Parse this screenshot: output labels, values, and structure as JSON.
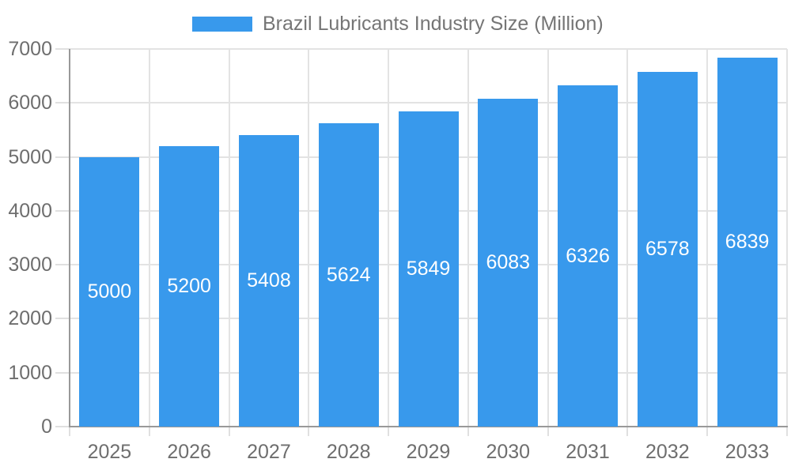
{
  "chart_data": {
    "type": "bar",
    "categories": [
      "2025",
      "2026",
      "2027",
      "2028",
      "2029",
      "2030",
      "2031",
      "2032",
      "2033"
    ],
    "series": [
      {
        "name": "Brazil Lubricants Industry Size (Million)",
        "values": [
          5000,
          5200,
          5408,
          5624,
          5849,
          6083,
          6326,
          6578,
          6839
        ],
        "color": "#3899EC"
      }
    ],
    "legend_label": "Brazil Lubricants Industry Size (Million)",
    "legend_position": "top-center",
    "ylim": [
      0,
      7000
    ],
    "yticks": [
      0,
      1000,
      2000,
      3000,
      4000,
      5000,
      6000,
      7000
    ],
    "grid": true,
    "value_labels": "inside-center",
    "colors": {
      "bar": "#3899EC",
      "gridline": "#E3E3E3",
      "tick": "#E0E0E0",
      "axis_line": "#999999",
      "axis_text": "#6E6E6E",
      "legend_text": "#757575",
      "value_text": "#FFFFFF",
      "background": "#FFFFFF"
    }
  }
}
